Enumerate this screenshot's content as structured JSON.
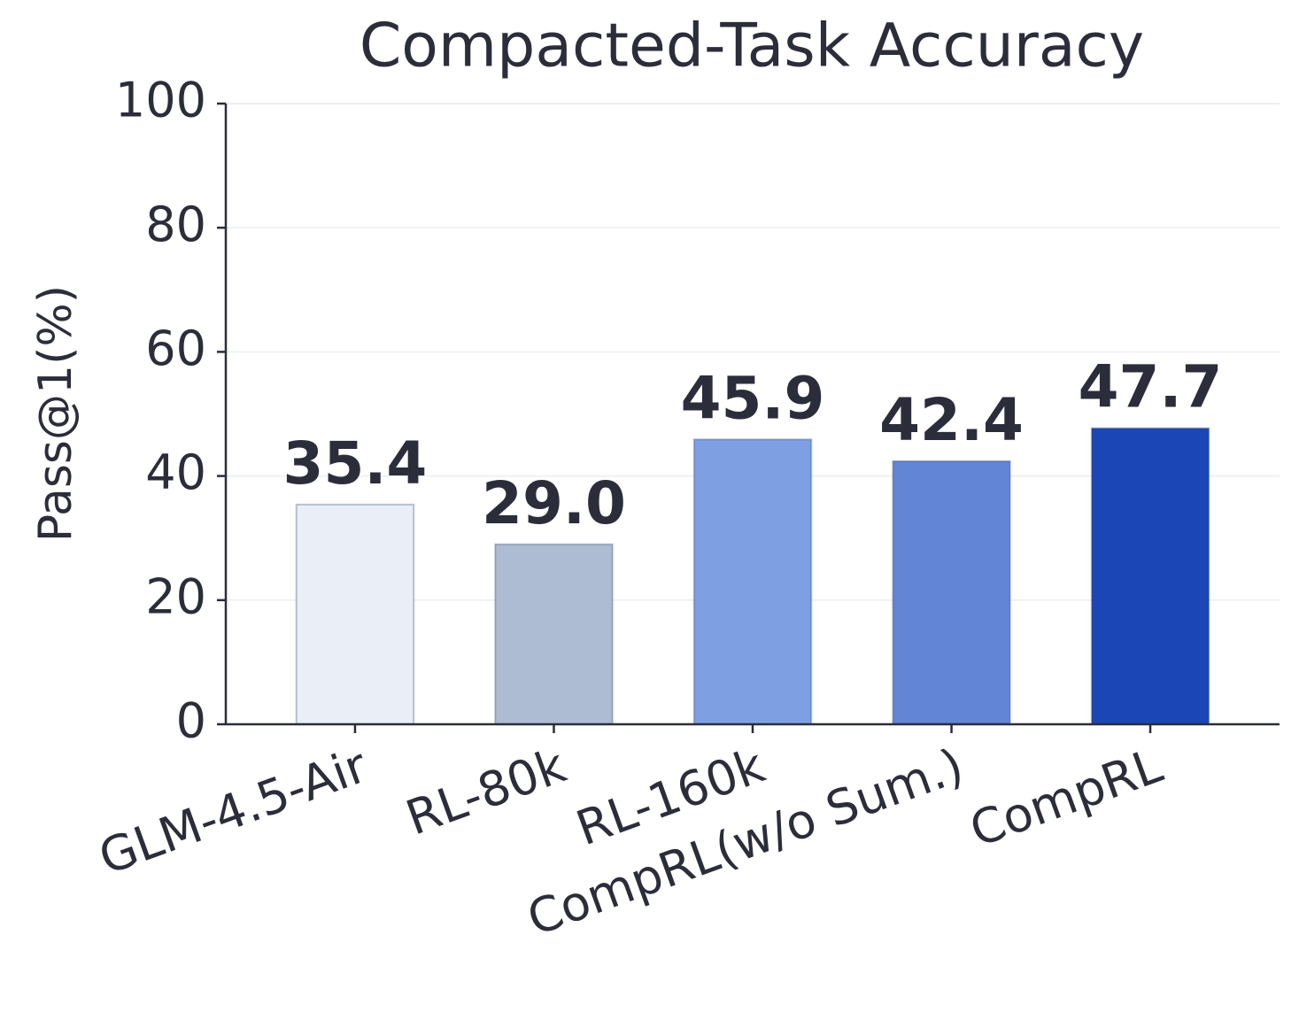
{
  "chart_data": {
    "type": "bar",
    "title": "Compacted-Task Accuracy",
    "y_label": "Pass@1(%)",
    "categories": [
      "GLM-4.5-Air",
      "RL-80k",
      "RL-160k",
      "CompRL(w/o Sum.)",
      "CompRL"
    ],
    "values": [
      35.4,
      29.0,
      45.9,
      42.4,
      47.7
    ],
    "value_labels": [
      "35.4",
      "29.0",
      "45.9",
      "42.4",
      "47.7"
    ],
    "colors": [
      "#eaeef6",
      "#adbbd3",
      "#7f9fe3",
      "#6285d6",
      "#1a47b5"
    ],
    "ylim": [
      0,
      100
    ],
    "yticks": [
      0,
      20,
      40,
      60,
      80,
      100
    ],
    "grid": true
  }
}
